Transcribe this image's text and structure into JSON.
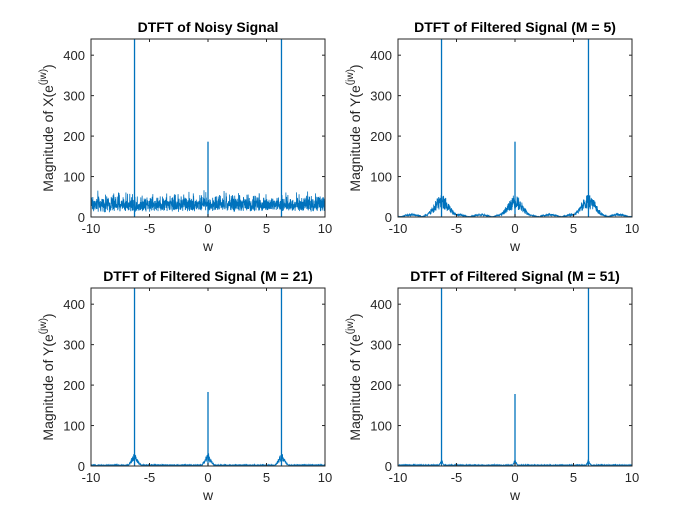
{
  "colors": {
    "line": "#0072BD",
    "axis": "#262626",
    "background": "#ffffff"
  },
  "chart_data": [
    {
      "type": "line",
      "title": "DTFT of Noisy Signal",
      "xlabel": "w",
      "ylabel": {
        "base": "Magnitude of X(e",
        "sup": "(jw)",
        "close": ")"
      },
      "xlim": [
        -10,
        10
      ],
      "ylim": [
        0,
        440
      ],
      "xticks": [
        -10,
        -5,
        0,
        5,
        10
      ],
      "yticks": [
        0,
        100,
        200,
        300,
        400
      ],
      "grid": false,
      "series": [
        {
          "peaks": [
            {
              "x": -6.28,
              "y": 440
            },
            {
              "x": 0,
              "y": 186
            },
            {
              "x": 6.28,
              "y": 440
            }
          ],
          "noise_floor": [
            5,
            75
          ],
          "x_range": [
            -10,
            10
          ]
        }
      ]
    },
    {
      "type": "line",
      "title": "DTFT of Filtered Signal (M = 5)",
      "xlabel": "w",
      "ylabel": {
        "base": "Magnitude of Y(e",
        "sup": "(jw)",
        "close": ")"
      },
      "xlim": [
        -10,
        10
      ],
      "ylim": [
        0,
        440
      ],
      "xticks": [
        -10,
        -5,
        0,
        5,
        10
      ],
      "yticks": [
        0,
        100,
        200,
        300,
        400
      ],
      "grid": false,
      "series": [
        {
          "peaks": [
            {
              "x": -6.28,
              "y": 440
            },
            {
              "x": 0,
              "y": 186
            },
            {
              "x": 6.28,
              "y": 440
            }
          ],
          "sidelobe_height": 55,
          "x_range": [
            -10,
            10
          ]
        }
      ]
    },
    {
      "type": "line",
      "title": "DTFT of Filtered Signal (M = 21)",
      "xlabel": "w",
      "ylabel": {
        "base": "Magnitude of Y(e",
        "sup": "(jw)",
        "close": ")"
      },
      "xlim": [
        -10,
        10
      ],
      "ylim": [
        0,
        440
      ],
      "xticks": [
        -10,
        -5,
        0,
        5,
        10
      ],
      "yticks": [
        0,
        100,
        200,
        300,
        400
      ],
      "grid": false,
      "series": [
        {
          "peaks": [
            {
              "x": -6.28,
              "y": 440
            },
            {
              "x": 0,
              "y": 183
            },
            {
              "x": 6.28,
              "y": 440
            }
          ],
          "sidelobe_height": 30,
          "x_range": [
            -10,
            10
          ]
        }
      ]
    },
    {
      "type": "line",
      "title": "DTFT of Filtered Signal (M = 51)",
      "xlabel": "w",
      "ylabel": {
        "base": "Magnitude of Y(e",
        "sup": "(jw)",
        "close": ")"
      },
      "xlim": [
        -10,
        10
      ],
      "ylim": [
        0,
        440
      ],
      "xticks": [
        -10,
        -5,
        0,
        5,
        10
      ],
      "yticks": [
        0,
        100,
        200,
        300,
        400
      ],
      "grid": false,
      "series": [
        {
          "peaks": [
            {
              "x": -6.28,
              "y": 440
            },
            {
              "x": 0,
              "y": 178
            },
            {
              "x": 6.28,
              "y": 440
            }
          ],
          "sidelobe_height": 15,
          "x_range": [
            -10,
            10
          ]
        }
      ]
    }
  ]
}
